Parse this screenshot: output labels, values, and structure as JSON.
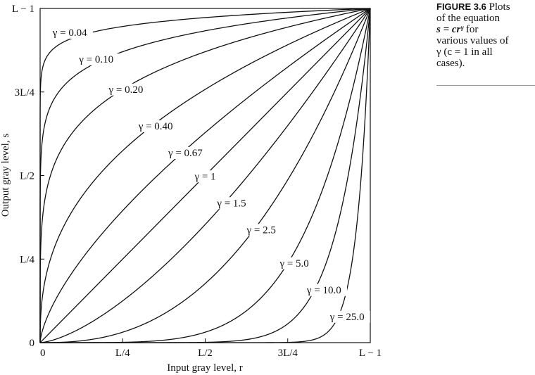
{
  "chart_data": {
    "type": "line",
    "xlabel": "Input gray level, r",
    "ylabel": "Output gray level, s",
    "xlim": [
      0,
      1
    ],
    "ylim": [
      0,
      1
    ],
    "grid": false,
    "x_ticks": [
      {
        "value": 0,
        "label": "0"
      },
      {
        "value": 0.25,
        "label": "L/4"
      },
      {
        "value": 0.5,
        "label": "L/2"
      },
      {
        "value": 0.75,
        "label": "3L/4"
      },
      {
        "value": 1,
        "label": "L − 1"
      }
    ],
    "y_ticks": [
      {
        "value": 0,
        "label": "0"
      },
      {
        "value": 0.25,
        "label": "L/4"
      },
      {
        "value": 0.5,
        "label": "L/2"
      },
      {
        "value": 0.75,
        "label": "3L/4"
      },
      {
        "value": 1,
        "label": "L − 1"
      }
    ],
    "series": [
      {
        "gamma": 0.04,
        "label": "γ = 0.04",
        "label_at": [
          0.09,
          0.92
        ]
      },
      {
        "gamma": 0.1,
        "label": "γ = 0.10",
        "label_at": [
          0.17,
          0.84
        ]
      },
      {
        "gamma": 0.2,
        "label": "γ = 0.20",
        "label_at": [
          0.26,
          0.75
        ]
      },
      {
        "gamma": 0.4,
        "label": "γ = 0.40",
        "label_at": [
          0.35,
          0.64
        ]
      },
      {
        "gamma": 0.67,
        "label": "γ = 0.67",
        "label_at": [
          0.44,
          0.56
        ]
      },
      {
        "gamma": 1,
        "label": "γ = 1",
        "label_at": [
          0.5,
          0.49
        ]
      },
      {
        "gamma": 1.5,
        "label": "γ = 1.5",
        "label_at": [
          0.58,
          0.41
        ]
      },
      {
        "gamma": 2.5,
        "label": "γ = 2.5",
        "label_at": [
          0.67,
          0.33
        ]
      },
      {
        "gamma": 5.0,
        "label": "γ = 5.0",
        "label_at": [
          0.77,
          0.23
        ]
      },
      {
        "gamma": 10.0,
        "label": "γ = 10.0",
        "label_at": [
          0.86,
          0.15
        ]
      },
      {
        "gamma": 25.0,
        "label": "γ = 25.0",
        "label_at": [
          0.93,
          0.07
        ]
      }
    ]
  },
  "caption": {
    "figure_label": "FIGURE 3.6",
    "line1": "Plots",
    "line2": "of the equation",
    "equation": "s = crᵞ",
    "line3": "for",
    "line4": "various values of",
    "line5": "γ (c = 1 in all",
    "line6": "cases)."
  }
}
